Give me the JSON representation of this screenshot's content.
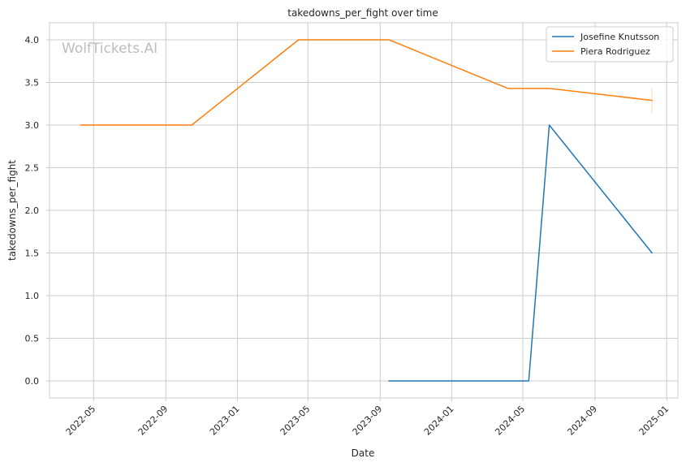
{
  "chart_data": {
    "type": "line",
    "title": "takedowns_per_fight over time",
    "xlabel": "Date",
    "ylabel": "takedowns_per_fight",
    "watermark": "WolfTickets.AI",
    "grid": true,
    "legend_position": "top-right",
    "x_range": [
      "2022-02-15",
      "2025-01-20"
    ],
    "y_range": [
      -0.2,
      4.2
    ],
    "x_ticks": [
      "2022-05-01",
      "2022-09-01",
      "2023-01-01",
      "2023-05-01",
      "2023-09-01",
      "2024-01-01",
      "2024-05-01",
      "2024-09-01",
      "2025-01-01"
    ],
    "x_tick_labels": [
      "2022-05",
      "2022-09",
      "2023-01",
      "2023-05",
      "2023-09",
      "2024-01",
      "2024-05",
      "2024-09",
      "2025-01"
    ],
    "y_ticks": [
      0.0,
      0.5,
      1.0,
      1.5,
      2.0,
      2.5,
      3.0,
      3.5,
      4.0
    ],
    "y_tick_labels": [
      "0.0",
      "0.5",
      "1.0",
      "1.5",
      "2.0",
      "2.5",
      "3.0",
      "3.5",
      "4.0"
    ],
    "series": [
      {
        "name": "Josefine Knutsson",
        "color": "#1f77b4",
        "points": [
          {
            "x": "2023-09-16",
            "y": 0.0
          },
          {
            "x": "2024-05-11",
            "y": 0.0
          },
          {
            "x": "2024-06-15",
            "y": 3.0
          },
          {
            "x": "2024-12-07",
            "y": 1.5
          }
        ]
      },
      {
        "name": "Piera Rodriguez",
        "color": "#ff7f0e",
        "points": [
          {
            "x": "2022-04-09",
            "y": 3.0
          },
          {
            "x": "2022-10-15",
            "y": 3.0
          },
          {
            "x": "2023-04-15",
            "y": 4.0
          },
          {
            "x": "2023-09-16",
            "y": 4.0
          },
          {
            "x": "2024-04-06",
            "y": 3.43
          },
          {
            "x": "2024-06-15",
            "y": 3.43
          },
          {
            "x": "2024-12-07",
            "y": 3.29
          }
        ],
        "error_band": {
          "x": "2024-12-07",
          "low": 3.14,
          "high": 3.43
        }
      }
    ]
  }
}
